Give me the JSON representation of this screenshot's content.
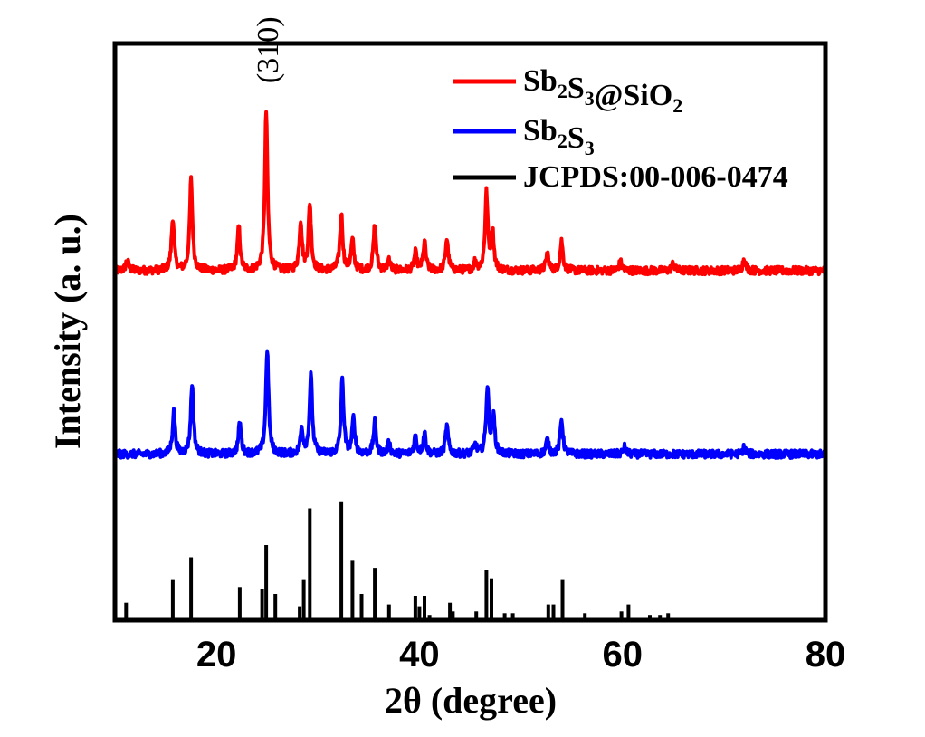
{
  "chart_data": {
    "type": "line",
    "title": "",
    "xlabel": "2θ (degree)",
    "ylabel": "Intensity (a. u.)",
    "xlim": [
      10,
      80
    ],
    "ylim": [
      0,
      3.3
    ],
    "grid": false,
    "legend_position": "top-right",
    "x_ticks": [
      20,
      40,
      60,
      80
    ],
    "x_tick_labels": [
      "20",
      "40",
      "60",
      "80"
    ],
    "y_ticks": [],
    "annotations": [
      {
        "text": "(310)",
        "x": 25.0,
        "series": "Sb2S3@SiO2"
      }
    ],
    "series": [
      {
        "name": "Sb2S3@SiO2",
        "legend_parts": [
          [
            "Sb",
            ""
          ],
          [
            "2",
            "sub"
          ],
          [
            "S",
            ""
          ],
          [
            "3",
            "sub"
          ],
          [
            "@SiO",
            ""
          ],
          [
            "2",
            "sub"
          ]
        ],
        "color": "#ff0000",
        "kind": "profile",
        "baseline": 2.0,
        "peaks": [
          [
            11.2,
            0.06
          ],
          [
            15.7,
            0.3
          ],
          [
            17.5,
            0.52
          ],
          [
            22.2,
            0.25
          ],
          [
            24.9,
            0.91
          ],
          [
            28.3,
            0.28
          ],
          [
            29.2,
            0.38
          ],
          [
            32.3,
            0.33
          ],
          [
            33.4,
            0.17
          ],
          [
            35.6,
            0.26
          ],
          [
            37.0,
            0.06
          ],
          [
            39.6,
            0.1
          ],
          [
            40.5,
            0.16
          ],
          [
            42.7,
            0.18
          ],
          [
            45.5,
            0.05
          ],
          [
            46.6,
            0.44
          ],
          [
            47.2,
            0.22
          ],
          [
            52.6,
            0.1
          ],
          [
            54.0,
            0.17
          ],
          [
            59.8,
            0.05
          ],
          [
            65.0,
            0.04
          ],
          [
            72.0,
            0.07
          ]
        ]
      },
      {
        "name": "Sb2S3",
        "legend_parts": [
          [
            "Sb",
            ""
          ],
          [
            "2",
            "sub"
          ],
          [
            "S",
            ""
          ],
          [
            "3",
            "sub"
          ]
        ],
        "color": "#0000ff",
        "kind": "profile",
        "baseline": 0.95,
        "peaks": [
          [
            15.8,
            0.24
          ],
          [
            17.6,
            0.4
          ],
          [
            22.3,
            0.18
          ],
          [
            25.0,
            0.6
          ],
          [
            28.4,
            0.14
          ],
          [
            29.3,
            0.45
          ],
          [
            32.4,
            0.42
          ],
          [
            33.5,
            0.2
          ],
          [
            35.6,
            0.18
          ],
          [
            37.0,
            0.06
          ],
          [
            39.6,
            0.1
          ],
          [
            40.5,
            0.12
          ],
          [
            42.7,
            0.16
          ],
          [
            45.5,
            0.05
          ],
          [
            46.7,
            0.38
          ],
          [
            47.3,
            0.2
          ],
          [
            52.6,
            0.08
          ],
          [
            54.0,
            0.2
          ],
          [
            60.2,
            0.04
          ],
          [
            72.0,
            0.04
          ]
        ]
      },
      {
        "name": "JCPDS:00-006-0474",
        "legend_parts": [
          [
            "JCPDS:00-006-0474",
            ""
          ]
        ],
        "color": "#000000",
        "kind": "sticks",
        "baseline": 0.0,
        "peaks": [
          [
            11.1,
            0.1
          ],
          [
            15.7,
            0.23
          ],
          [
            17.5,
            0.36
          ],
          [
            22.3,
            0.19
          ],
          [
            24.5,
            0.18
          ],
          [
            24.9,
            0.43
          ],
          [
            25.8,
            0.15
          ],
          [
            28.2,
            0.08
          ],
          [
            28.6,
            0.23
          ],
          [
            29.2,
            0.64
          ],
          [
            32.3,
            0.68
          ],
          [
            33.4,
            0.34
          ],
          [
            34.3,
            0.15
          ],
          [
            35.6,
            0.3
          ],
          [
            37.0,
            0.09
          ],
          [
            39.6,
            0.14
          ],
          [
            40.0,
            0.08
          ],
          [
            40.5,
            0.14
          ],
          [
            41.0,
            0.03
          ],
          [
            43.0,
            0.1
          ],
          [
            43.3,
            0.05
          ],
          [
            45.6,
            0.05
          ],
          [
            46.6,
            0.29
          ],
          [
            47.1,
            0.24
          ],
          [
            48.4,
            0.04
          ],
          [
            49.2,
            0.04
          ],
          [
            52.7,
            0.09
          ],
          [
            53.2,
            0.09
          ],
          [
            54.1,
            0.23
          ],
          [
            56.3,
            0.04
          ],
          [
            59.9,
            0.05
          ],
          [
            60.6,
            0.09
          ],
          [
            62.7,
            0.03
          ],
          [
            63.7,
            0.03
          ],
          [
            64.5,
            0.04
          ]
        ]
      }
    ]
  }
}
